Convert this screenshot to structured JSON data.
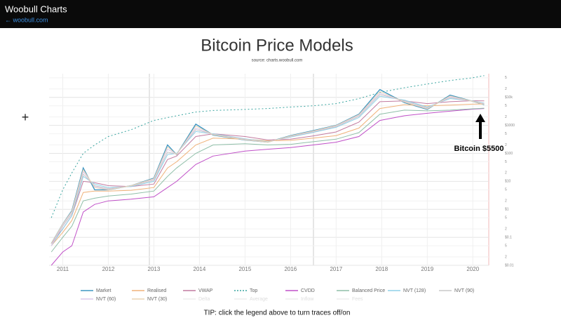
{
  "header": {
    "title": "Woobull Charts",
    "link": "← woobull.com"
  },
  "cursor": "+",
  "annotation": "Bitcoin $5500",
  "tip": "TIP: click the legend above to turn traces off/on",
  "chart_data": {
    "type": "line",
    "title": "Bitcoin Price Models",
    "subtitle": "source: charts.woobull.com",
    "log_y": true,
    "grid": true,
    "x": [
      2010.75,
      2011.0,
      2011.2,
      2011.45,
      2011.7,
      2012.0,
      2012.5,
      2013.0,
      2013.3,
      2013.5,
      2013.92,
      2014.3,
      2015.0,
      2015.5,
      2016.0,
      2016.5,
      2017.0,
      2017.5,
      2017.96,
      2018.5,
      2019.0,
      2019.5,
      2020.0,
      2020.25
    ],
    "xlim": [
      2010.7,
      2020.35
    ],
    "xticks": [
      2011,
      2012,
      2013,
      2014,
      2015,
      2016,
      2017,
      2018,
      2019,
      2020
    ],
    "ylim": [
      0.01,
      70000
    ],
    "yticks": [
      {
        "value": 0.01,
        "label": "$0.01"
      },
      {
        "value": 0.02,
        "label": "2"
      },
      {
        "value": 0.05,
        "label": "5"
      },
      {
        "value": 0.1,
        "label": "$0.1"
      },
      {
        "value": 0.2,
        "label": "2"
      },
      {
        "value": 0.5,
        "label": "5"
      },
      {
        "value": 1,
        "label": "$1"
      },
      2,
      5,
      {
        "value": 10,
        "label": "$10"
      },
      {
        "value": 20,
        "label": "2"
      },
      {
        "value": 50,
        "label": "5"
      },
      {
        "value": 100,
        "label": "$100"
      },
      {
        "value": 200,
        "label": "2"
      },
      {
        "value": 500,
        "label": "5"
      },
      {
        "value": 1000,
        "label": "$1000"
      },
      {
        "value": 2000,
        "label": "2"
      },
      {
        "value": 5000,
        "label": "5"
      },
      {
        "value": 10000,
        "label": "$10k"
      },
      {
        "value": 20000,
        "label": "2"
      },
      {
        "value": 50000,
        "label": "5"
      }
    ],
    "series": [
      {
        "name": "Market",
        "color": "#3f97c4",
        "values": [
          0.06,
          0.3,
          0.9,
          30,
          5,
          5,
          7,
          13,
          200,
          90,
          1100,
          450,
          300,
          250,
          430,
          650,
          1000,
          2500,
          19000,
          6500,
          3700,
          12000,
          7200,
          5500
        ]
      },
      {
        "name": "Realised",
        "color": "#f0b27a",
        "values": [
          0.05,
          0.15,
          0.4,
          4,
          4.5,
          4.5,
          4.8,
          6,
          30,
          50,
          200,
          350,
          320,
          280,
          290,
          350,
          430,
          800,
          4000,
          5500,
          5000,
          5300,
          5700,
          5800
        ]
      },
      {
        "name": "VWAP",
        "color": "#c27ba0",
        "values": [
          0.06,
          0.2,
          0.6,
          10,
          9,
          7,
          6.5,
          8,
          60,
          80,
          400,
          500,
          400,
          300,
          320,
          420,
          580,
          1300,
          7000,
          7500,
          6000,
          7000,
          7600,
          7500
        ]
      },
      {
        "name": "Top",
        "color": "#3aa5a0",
        "dashed": true,
        "values": [
          0.5,
          5,
          20,
          100,
          200,
          400,
          700,
          1500,
          1900,
          2200,
          3000,
          3400,
          3700,
          4000,
          4500,
          5000,
          6000,
          9000,
          15000,
          22000,
          30000,
          40000,
          50000,
          60000
        ]
      },
      {
        "name": "CVDD",
        "color": "#c050c8",
        "values": [
          0.01,
          0.03,
          0.05,
          0.8,
          1.5,
          2,
          2.3,
          2.8,
          6,
          10,
          40,
          80,
          120,
          140,
          160,
          200,
          250,
          400,
          1500,
          2200,
          2700,
          3200,
          3800,
          4000
        ]
      },
      {
        "name": "Balanced Price",
        "color": "#8fbfa8",
        "values": [
          0.03,
          0.1,
          0.25,
          2,
          2.5,
          3,
          3.5,
          4.5,
          15,
          30,
          100,
          200,
          220,
          200,
          210,
          260,
          320,
          550,
          2500,
          3500,
          3300,
          3500,
          3900,
          4100
        ]
      },
      {
        "name": "NVT (128)",
        "color": "#8fd0e8",
        "values": [
          0.05,
          0.2,
          0.6,
          15,
          8,
          6,
          6.5,
          10,
          90,
          100,
          600,
          500,
          330,
          260,
          380,
          560,
          850,
          1900,
          11000,
          8000,
          4500,
          9000,
          7500,
          6200
        ]
      },
      {
        "name": "NVT (90)",
        "color": "#c8c8c8",
        "values": [
          0.05,
          0.25,
          0.7,
          18,
          7,
          5.5,
          6.8,
          11,
          110,
          95,
          700,
          480,
          320,
          255,
          400,
          590,
          900,
          2100,
          12500,
          7500,
          4200,
          9800,
          7300,
          6000
        ]
      },
      {
        "name": "NVT (60)",
        "color": "#dcc8ec",
        "values": [
          0.05,
          0.28,
          0.8,
          22,
          6.5,
          5.2,
          7,
          12,
          140,
          92,
          800,
          470,
          310,
          250,
          410,
          610,
          950,
          2300,
          14000,
          7000,
          4000,
          10500,
          7200,
          5800
        ]
      },
      {
        "name": "NVT (30)",
        "color": "#ead4b4",
        "values": [
          0.06,
          0.3,
          0.85,
          26,
          6,
          5,
          7,
          12.5,
          170,
          90,
          950,
          460,
          305,
          250,
          420,
          630,
          980,
          2400,
          16000,
          6800,
          3850,
          11200,
          7200,
          5600
        ]
      },
      {
        "name": "Delta",
        "color": "#dddddd",
        "visible": false,
        "values": [
          null,
          null,
          null,
          null,
          null,
          null,
          null,
          null,
          null,
          null,
          null,
          null,
          null,
          null,
          null,
          null,
          null,
          null,
          null,
          null,
          null,
          null,
          null,
          null
        ]
      },
      {
        "name": "Average",
        "color": "#dddddd",
        "visible": false,
        "values": [
          null,
          null,
          null,
          null,
          null,
          null,
          null,
          null,
          null,
          null,
          null,
          null,
          null,
          null,
          null,
          null,
          null,
          null,
          null,
          null,
          null,
          null,
          null,
          null
        ]
      },
      {
        "name": "Inflow",
        "color": "#dddddd",
        "visible": false,
        "values": [
          null,
          null,
          null,
          null,
          null,
          null,
          null,
          null,
          null,
          null,
          null,
          null,
          null,
          null,
          null,
          null,
          null,
          null,
          null,
          null,
          null,
          null,
          null,
          null
        ]
      },
      {
        "name": "Fees",
        "color": "#dddddd",
        "visible": false,
        "values": [
          null,
          null,
          null,
          null,
          null,
          null,
          null,
          null,
          null,
          null,
          null,
          null,
          null,
          null,
          null,
          null,
          null,
          null,
          null,
          null,
          null,
          null,
          null,
          null
        ]
      }
    ]
  }
}
